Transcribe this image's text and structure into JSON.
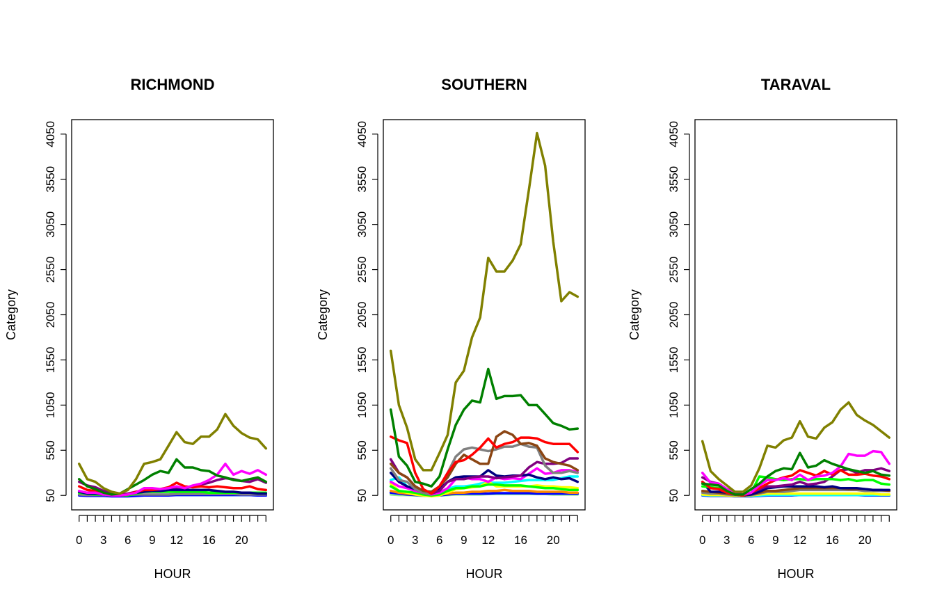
{
  "chart_data": [
    {
      "type": "line",
      "title": "RICHMOND",
      "xlabel": "HOUR",
      "ylabel": "Category",
      "ylim": [
        50,
        4050
      ],
      "yticks": [
        50,
        550,
        1050,
        1550,
        2050,
        2550,
        3050,
        3550,
        4050
      ],
      "xticks": [
        0,
        3,
        6,
        9,
        12,
        16,
        20
      ],
      "x": [
        0,
        1,
        2,
        3,
        4,
        5,
        6,
        7,
        8,
        9,
        10,
        11,
        12,
        13,
        14,
        15,
        16,
        17,
        18,
        19,
        20,
        21,
        22,
        23
      ],
      "series": [
        {
          "color": "#808000",
          "values": [
            400,
            230,
            200,
            130,
            90,
            70,
            110,
            230,
            400,
            420,
            450,
            600,
            750,
            640,
            620,
            700,
            700,
            780,
            950,
            820,
            740,
            690,
            670,
            570
          ]
        },
        {
          "color": "#008000",
          "values": [
            230,
            150,
            120,
            80,
            60,
            70,
            120,
            170,
            220,
            280,
            320,
            300,
            450,
            360,
            360,
            330,
            320,
            270,
            250,
            220,
            210,
            230,
            250,
            200
          ]
        },
        {
          "color": "#ff00ff",
          "values": [
            100,
            80,
            80,
            60,
            50,
            50,
            60,
            80,
            130,
            130,
            120,
            130,
            150,
            130,
            160,
            180,
            220,
            280,
            400,
            280,
            320,
            290,
            330,
            280
          ]
        },
        {
          "color": "#ff0000",
          "values": [
            150,
            110,
            100,
            80,
            60,
            50,
            60,
            90,
            110,
            110,
            120,
            140,
            190,
            150,
            140,
            150,
            140,
            150,
            140,
            130,
            130,
            150,
            120,
            110
          ]
        },
        {
          "color": "#000080",
          "values": [
            90,
            70,
            70,
            60,
            50,
            50,
            60,
            80,
            90,
            100,
            100,
            110,
            110,
            110,
            110,
            110,
            110,
            100,
            90,
            90,
            80,
            80,
            70,
            70
          ]
        },
        {
          "color": "#800080",
          "values": [
            200,
            160,
            140,
            100,
            70,
            60,
            70,
            90,
            100,
            100,
            110,
            120,
            130,
            130,
            150,
            170,
            190,
            220,
            240,
            230,
            210,
            200,
            230,
            190
          ]
        },
        {
          "color": "#00ff00",
          "values": [
            80,
            70,
            60,
            60,
            50,
            50,
            50,
            70,
            90,
            90,
            90,
            90,
            90,
            90,
            90,
            90,
            80,
            80,
            80,
            80,
            80,
            80,
            80,
            80
          ]
        },
        {
          "color": "#808080",
          "values": [
            60,
            55,
            55,
            55,
            50,
            50,
            55,
            60,
            60,
            60,
            60,
            60,
            65,
            65,
            65,
            65,
            65,
            65,
            65,
            65,
            60,
            60,
            60,
            60
          ]
        },
        {
          "color": "#0000ff",
          "values": [
            50,
            45,
            45,
            45,
            40,
            40,
            40,
            45,
            50,
            50,
            50,
            50,
            55,
            55,
            55,
            55,
            55,
            55,
            55,
            55,
            55,
            55,
            50,
            50
          ]
        },
        {
          "color": "#00ffff",
          "values": [
            55,
            50,
            50,
            50,
            45,
            45,
            45,
            50,
            55,
            55,
            55,
            55,
            55,
            55,
            55,
            55,
            55,
            55,
            55,
            55,
            55,
            55,
            50,
            50
          ]
        }
      ]
    },
    {
      "type": "line",
      "title": "SOUTHERN",
      "xlabel": "HOUR",
      "ylabel": "Category",
      "ylim": [
        50,
        4050
      ],
      "yticks": [
        50,
        550,
        1050,
        1550,
        2050,
        2550,
        3050,
        3550,
        4050
      ],
      "xticks": [
        0,
        3,
        6,
        9,
        12,
        16,
        20
      ],
      "x": [
        0,
        1,
        2,
        3,
        4,
        5,
        6,
        7,
        8,
        9,
        10,
        11,
        12,
        13,
        14,
        15,
        16,
        17,
        18,
        19,
        20,
        21,
        22,
        23
      ],
      "series": [
        {
          "color": "#808000",
          "values": [
            1650,
            1050,
            800,
            450,
            330,
            330,
            520,
            720,
            1300,
            1430,
            1800,
            2020,
            2680,
            2530,
            2530,
            2650,
            2830,
            3430,
            4060,
            3700,
            2860,
            2200,
            2300,
            2250
          ]
        },
        {
          "color": "#008000",
          "values": [
            1000,
            480,
            380,
            200,
            180,
            150,
            260,
            560,
            830,
            1000,
            1100,
            1080,
            1450,
            1120,
            1150,
            1150,
            1160,
            1050,
            1050,
            950,
            850,
            820,
            780,
            790
          ]
        },
        {
          "color": "#ff0000",
          "values": [
            700,
            660,
            630,
            300,
            120,
            70,
            150,
            300,
            420,
            440,
            500,
            580,
            680,
            580,
            620,
            640,
            690,
            690,
            680,
            640,
            620,
            620,
            620,
            530
          ]
        },
        {
          "color": "#8b4513",
          "values": [
            400,
            300,
            250,
            150,
            100,
            90,
            150,
            250,
            400,
            500,
            450,
            400,
            400,
            700,
            760,
            720,
            620,
            630,
            600,
            460,
            420,
            400,
            380,
            330
          ]
        },
        {
          "color": "#808080",
          "values": [
            350,
            220,
            200,
            120,
            80,
            70,
            150,
            300,
            480,
            560,
            580,
            560,
            540,
            560,
            590,
            590,
            620,
            590,
            580,
            380,
            300,
            300,
            320,
            300
          ]
        },
        {
          "color": "#800080",
          "values": [
            450,
            300,
            250,
            150,
            100,
            70,
            100,
            200,
            230,
            230,
            250,
            260,
            260,
            240,
            250,
            260,
            270,
            360,
            420,
            400,
            400,
            410,
            460,
            460
          ]
        },
        {
          "color": "#000080",
          "values": [
            300,
            200,
            150,
            120,
            80,
            70,
            120,
            200,
            250,
            260,
            260,
            260,
            330,
            270,
            260,
            270,
            270,
            280,
            250,
            230,
            250,
            230,
            240,
            200
          ]
        },
        {
          "color": "#ff00ff",
          "values": [
            200,
            150,
            130,
            100,
            80,
            60,
            80,
            130,
            230,
            250,
            230,
            230,
            200,
            250,
            230,
            240,
            230,
            290,
            350,
            290,
            300,
            330,
            330,
            310
          ]
        },
        {
          "color": "#00ff00",
          "values": [
            150,
            100,
            90,
            80,
            60,
            50,
            60,
            100,
            130,
            130,
            150,
            150,
            170,
            170,
            160,
            160,
            160,
            150,
            140,
            130,
            130,
            120,
            110,
            110
          ]
        },
        {
          "color": "#ffff00",
          "values": [
            180,
            100,
            80,
            60,
            50,
            40,
            50,
            80,
            120,
            130,
            140,
            150,
            200,
            150,
            150,
            150,
            150,
            150,
            160,
            150,
            150,
            140,
            140,
            130
          ]
        },
        {
          "color": "#00ffff",
          "values": [
            220,
            250,
            150,
            100,
            80,
            60,
            80,
            120,
            150,
            150,
            160,
            180,
            190,
            190,
            190,
            200,
            210,
            220,
            220,
            220,
            220,
            240,
            260,
            260
          ]
        },
        {
          "color": "#ff8c00",
          "values": [
            100,
            80,
            70,
            60,
            50,
            50,
            60,
            70,
            80,
            80,
            90,
            90,
            100,
            100,
            110,
            100,
            100,
            100,
            90,
            90,
            90,
            90,
            80,
            80
          ]
        },
        {
          "color": "#0000ff",
          "values": [
            80,
            70,
            60,
            55,
            50,
            45,
            50,
            60,
            70,
            70,
            70,
            70,
            70,
            75,
            75,
            75,
            75,
            75,
            70,
            70,
            70,
            70,
            70,
            70
          ]
        },
        {
          "color": "#90ee90",
          "values": [
            60,
            55,
            55,
            50,
            45,
            45,
            50,
            55,
            60,
            60,
            60,
            60,
            65,
            65,
            65,
            65,
            65,
            65,
            65,
            65,
            60,
            60,
            60,
            60
          ]
        }
      ]
    },
    {
      "type": "line",
      "title": "TARAVAL",
      "xlabel": "HOUR",
      "ylabel": "Category",
      "ylim": [
        50,
        4050
      ],
      "yticks": [
        50,
        550,
        1050,
        1550,
        2050,
        2550,
        3050,
        3550,
        4050
      ],
      "xticks": [
        0,
        3,
        6,
        9,
        12,
        16,
        20
      ],
      "x": [
        0,
        1,
        2,
        3,
        4,
        5,
        6,
        7,
        8,
        9,
        10,
        11,
        12,
        13,
        14,
        15,
        16,
        17,
        18,
        19,
        20,
        21,
        22,
        23
      ],
      "series": [
        {
          "color": "#808000",
          "values": [
            650,
            320,
            230,
            160,
            90,
            90,
            160,
            350,
            600,
            580,
            660,
            690,
            870,
            700,
            680,
            800,
            860,
            1000,
            1080,
            940,
            880,
            830,
            760,
            690
          ]
        },
        {
          "color": "#008000",
          "values": [
            180,
            170,
            160,
            100,
            60,
            60,
            120,
            180,
            260,
            320,
            350,
            340,
            520,
            360,
            380,
            440,
            400,
            370,
            340,
            320,
            300,
            320,
            280,
            270
          ]
        },
        {
          "color": "#ff00ff",
          "values": [
            300,
            190,
            180,
            120,
            70,
            60,
            80,
            160,
            220,
            220,
            240,
            220,
            280,
            220,
            260,
            270,
            300,
            370,
            510,
            490,
            490,
            540,
            530,
            400
          ]
        },
        {
          "color": "#ff0000",
          "values": [
            200,
            130,
            120,
            80,
            60,
            50,
            80,
            130,
            180,
            220,
            250,
            270,
            330,
            300,
            270,
            320,
            280,
            330,
            280,
            280,
            290,
            270,
            260,
            230
          ]
        },
        {
          "color": "#00ff00",
          "values": [
            150,
            140,
            130,
            80,
            60,
            50,
            80,
            260,
            250,
            230,
            220,
            230,
            230,
            220,
            230,
            230,
            230,
            220,
            230,
            210,
            220,
            220,
            180,
            170
          ]
        },
        {
          "color": "#800080",
          "values": [
            250,
            200,
            180,
            120,
            80,
            60,
            80,
            120,
            150,
            150,
            160,
            170,
            200,
            170,
            180,
            200,
            260,
            330,
            340,
            300,
            330,
            330,
            350,
            320
          ]
        },
        {
          "color": "#000080",
          "values": [
            200,
            90,
            90,
            80,
            60,
            50,
            60,
            90,
            130,
            140,
            150,
            150,
            150,
            150,
            150,
            140,
            150,
            130,
            130,
            130,
            120,
            110,
            110,
            110
          ]
        },
        {
          "color": "#8b4513",
          "values": [
            100,
            90,
            80,
            70,
            60,
            50,
            60,
            80,
            100,
            100,
            110,
            120,
            130,
            130,
            130,
            130,
            130,
            130,
            120,
            120,
            120,
            110,
            110,
            100
          ]
        },
        {
          "color": "#808080",
          "values": [
            80,
            70,
            70,
            60,
            55,
            50,
            55,
            70,
            90,
            90,
            90,
            100,
            110,
            110,
            110,
            110,
            110,
            110,
            110,
            110,
            100,
            100,
            100,
            100
          ]
        },
        {
          "color": "#ffff00",
          "values": [
            60,
            55,
            55,
            50,
            45,
            45,
            50,
            60,
            70,
            70,
            70,
            70,
            70,
            70,
            70,
            70,
            70,
            70,
            70,
            70,
            70,
            70,
            60,
            60
          ]
        },
        {
          "color": "#00ffff",
          "values": [
            55,
            50,
            50,
            50,
            45,
            45,
            45,
            50,
            55,
            55,
            55,
            55,
            55,
            55,
            55,
            55,
            55,
            55,
            55,
            55,
            55,
            55,
            55,
            55
          ]
        },
        {
          "color": "#0000ff",
          "values": [
            50,
            45,
            45,
            45,
            40,
            40,
            40,
            45,
            50,
            50,
            50,
            50,
            55,
            55,
            55,
            55,
            55,
            55,
            55,
            55,
            50,
            50,
            50,
            50
          ]
        }
      ]
    }
  ]
}
